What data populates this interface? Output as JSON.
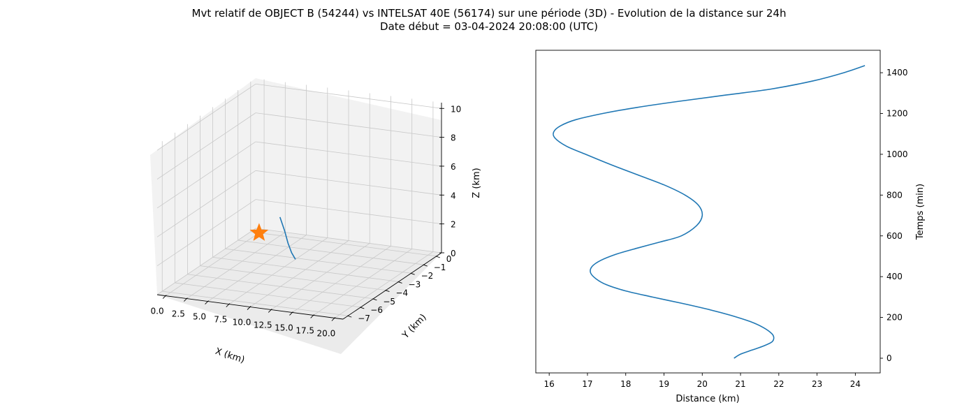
{
  "figure": {
    "title_line1": "Mvt relatif de OBJECT B (54244) vs INTELSAT 40E (56174) sur une période (3D) - Evolution de la distance sur 24h",
    "title_line2": "Date début = 03-04-2024 20:08:00 (UTC)"
  },
  "chart_data": [
    {
      "type": "line",
      "projection": "3d",
      "xlabel": "X (km)",
      "ylabel": "Y (km)",
      "zlabel": "Z (km)",
      "xlim": [
        -1.0,
        21.0
      ],
      "ylim": [
        -7.4,
        0.4
      ],
      "zlim": [
        0,
        10.4
      ],
      "x_ticks": [
        "0.0",
        "2.5",
        "5.0",
        "7.5",
        "10.0",
        "12.5",
        "15.0",
        "17.5",
        "20.0"
      ],
      "y_ticks": [
        "0",
        "−1",
        "−2",
        "−3",
        "−4",
        "−5",
        "−6",
        "−7"
      ],
      "z_ticks": [
        "0",
        "2",
        "4",
        "6",
        "8",
        "10"
      ],
      "grid": true,
      "colors": {
        "trajectory": "#1f77b4",
        "reference": "#ff7f0e"
      },
      "series": [
        {
          "marker": "line",
          "points": [
            [
              9.2,
              -4.5,
              4.45
            ],
            [
              10.5,
              -5.0,
              3.9
            ],
            [
              11.5,
              -5.4,
              3.35
            ],
            [
              12.3,
              -5.65,
              2.9
            ],
            [
              12.9,
              -5.75,
              2.55
            ]
          ]
        },
        {
          "marker": "star",
          "points": [
            [
              0,
              0,
              0
            ]
          ]
        }
      ]
    },
    {
      "type": "line",
      "xlabel": "Distance (km)",
      "ylabel": "Temps (min)",
      "xlim": [
        15.65,
        24.65
      ],
      "ylim": [
        -72,
        1510
      ],
      "x_ticks": [
        16,
        17,
        18,
        19,
        20,
        21,
        22,
        23,
        24
      ],
      "y_ticks": [
        0,
        200,
        400,
        600,
        800,
        1000,
        1200,
        1400
      ],
      "y_axis_position": "right",
      "color": "#1f77b4",
      "series": [
        {
          "distance_km": [
            20.83,
            21.0,
            21.3,
            21.6,
            21.82,
            21.87,
            21.82,
            21.6,
            21.25,
            20.75,
            20.15,
            19.45,
            18.7,
            18.0,
            17.5,
            17.22,
            17.08,
            17.12,
            17.35,
            17.75,
            18.3,
            18.9,
            19.45,
            19.85,
            20.0,
            19.9,
            19.55,
            19.0,
            18.3,
            17.6,
            16.95,
            16.45,
            16.15,
            16.12,
            16.3,
            16.7,
            17.4,
            18.3,
            19.4,
            20.6,
            21.8,
            22.9,
            23.7,
            24.25
          ],
          "time_min": [
            0,
            20,
            40,
            60,
            80,
            100,
            120,
            150,
            180,
            210,
            240,
            270,
            300,
            330,
            360,
            390,
            420,
            450,
            480,
            510,
            540,
            570,
            600,
            650,
            700,
            750,
            800,
            850,
            900,
            950,
            1000,
            1040,
            1080,
            1110,
            1140,
            1170,
            1200,
            1230,
            1260,
            1290,
            1320,
            1360,
            1400,
            1435
          ]
        }
      ]
    }
  ]
}
